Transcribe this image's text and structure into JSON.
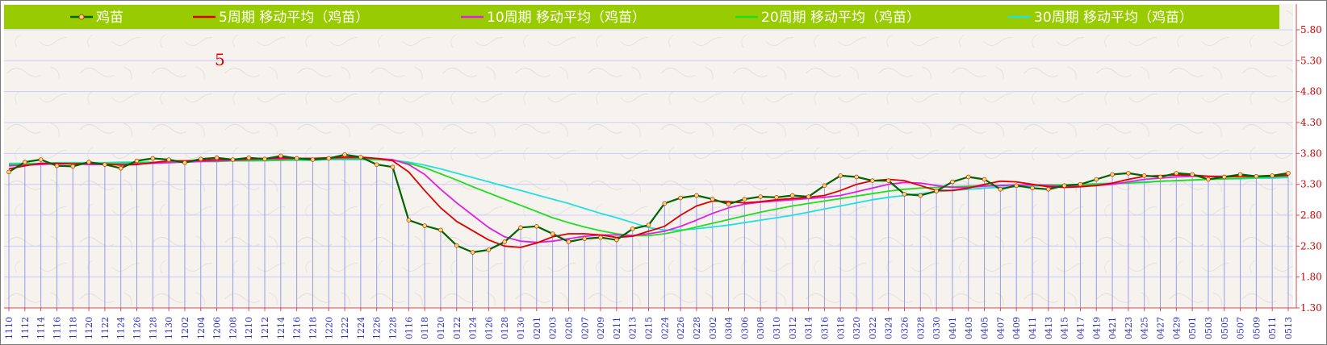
{
  "chart_data": {
    "type": "line",
    "title": "",
    "xlabel": "",
    "ylabel": "",
    "ylim": [
      1.3,
      5.8
    ],
    "yticks": [
      1.3,
      1.8,
      2.3,
      2.8,
      3.3,
      3.8,
      4.3,
      4.8,
      5.3,
      5.8
    ],
    "ytick_labels": [
      "1.30",
      "1.80",
      "2.30",
      "2.80",
      "3.30",
      "3.80",
      "4.30",
      "4.80",
      "5.30",
      "5.80"
    ],
    "legend_position": "top",
    "grid": true,
    "annotation": "5",
    "x": [
      "1110",
      "1112",
      "1114",
      "1116",
      "1118",
      "1120",
      "1122",
      "1124",
      "1126",
      "1128",
      "1130",
      "1202",
      "1204",
      "1206",
      "1208",
      "1210",
      "1212",
      "1214",
      "1216",
      "1218",
      "1220",
      "1222",
      "1224",
      "1226",
      "1228",
      "0116",
      "0118",
      "0120",
      "0122",
      "0124",
      "0126",
      "0128",
      "0130",
      "0201",
      "0203",
      "0205",
      "0207",
      "0209",
      "0211",
      "0213",
      "0215",
      "0224",
      "0226",
      "0228",
      "0302",
      "0304",
      "0306",
      "0308",
      "0310",
      "0312",
      "0314",
      "0316",
      "0318",
      "0320",
      "0322",
      "0324",
      "0326",
      "0328",
      "0330",
      "0401",
      "0403",
      "0405",
      "0407",
      "0409",
      "0411",
      "0413",
      "0415",
      "0417",
      "0419",
      "0421",
      "0423",
      "0425",
      "0427",
      "0429",
      "0501",
      "0503",
      "0505",
      "0507",
      "0509",
      "0511",
      "0513"
    ],
    "series": [
      {
        "name": "鸡苗",
        "color": "#006400",
        "values": [
          3.5,
          3.66,
          3.7,
          3.6,
          3.59,
          3.66,
          3.62,
          3.56,
          3.68,
          3.72,
          3.7,
          3.65,
          3.71,
          3.73,
          3.7,
          3.73,
          3.71,
          3.76,
          3.72,
          3.7,
          3.72,
          3.78,
          3.74,
          3.62,
          3.58,
          2.72,
          2.63,
          2.56,
          2.31,
          2.2,
          2.24,
          2.37,
          2.6,
          2.62,
          2.5,
          2.37,
          2.42,
          2.44,
          2.4,
          2.58,
          2.64,
          2.99,
          3.08,
          3.12,
          3.06,
          2.98,
          3.06,
          3.1,
          3.09,
          3.12,
          3.1,
          3.28,
          3.44,
          3.42,
          3.36,
          3.36,
          3.14,
          3.12,
          3.19,
          3.34,
          3.42,
          3.38,
          3.22,
          3.28,
          3.24,
          3.22,
          3.28,
          3.3,
          3.38,
          3.46,
          3.48,
          3.44,
          3.42,
          3.48,
          3.46,
          3.38,
          3.42,
          3.46,
          3.43,
          3.44,
          3.48
        ]
      },
      {
        "name": "5周期 移动平均（鸡苗）",
        "color": "#dd0000",
        "values": [
          3.55,
          3.6,
          3.64,
          3.64,
          3.63,
          3.64,
          3.63,
          3.61,
          3.62,
          3.65,
          3.68,
          3.68,
          3.69,
          3.7,
          3.7,
          3.71,
          3.72,
          3.73,
          3.72,
          3.72,
          3.73,
          3.74,
          3.74,
          3.72,
          3.68,
          3.5,
          3.2,
          2.92,
          2.7,
          2.55,
          2.4,
          2.3,
          2.28,
          2.35,
          2.45,
          2.5,
          2.5,
          2.48,
          2.44,
          2.46,
          2.54,
          2.62,
          2.8,
          2.95,
          3.03,
          3.02,
          3.0,
          3.02,
          3.05,
          3.07,
          3.09,
          3.12,
          3.2,
          3.3,
          3.36,
          3.38,
          3.36,
          3.28,
          3.2,
          3.2,
          3.24,
          3.3,
          3.35,
          3.34,
          3.3,
          3.26,
          3.25,
          3.26,
          3.28,
          3.32,
          3.38,
          3.43,
          3.44,
          3.45,
          3.45,
          3.43,
          3.42,
          3.43,
          3.43,
          3.43,
          3.45
        ]
      },
      {
        "name": "10周期 移动平均（鸡苗）",
        "color": "#e020e0",
        "values": [
          3.6,
          3.61,
          3.62,
          3.63,
          3.63,
          3.62,
          3.62,
          3.62,
          3.63,
          3.64,
          3.65,
          3.66,
          3.67,
          3.68,
          3.69,
          3.7,
          3.71,
          3.71,
          3.72,
          3.72,
          3.72,
          3.73,
          3.73,
          3.72,
          3.7,
          3.62,
          3.46,
          3.22,
          3.0,
          2.8,
          2.6,
          2.45,
          2.38,
          2.36,
          2.38,
          2.42,
          2.46,
          2.48,
          2.48,
          2.47,
          2.5,
          2.54,
          2.62,
          2.72,
          2.83,
          2.92,
          2.98,
          3.01,
          3.03,
          3.05,
          3.07,
          3.09,
          3.12,
          3.18,
          3.24,
          3.3,
          3.33,
          3.32,
          3.28,
          3.25,
          3.25,
          3.27,
          3.28,
          3.29,
          3.29,
          3.28,
          3.27,
          3.27,
          3.28,
          3.3,
          3.34,
          3.38,
          3.4,
          3.42,
          3.43,
          3.43,
          3.43,
          3.43,
          3.43,
          3.44,
          3.44
        ]
      },
      {
        "name": "20周期 移动平均（鸡苗）",
        "color": "#22dd22",
        "values": [
          3.62,
          3.63,
          3.63,
          3.64,
          3.64,
          3.64,
          3.64,
          3.64,
          3.65,
          3.65,
          3.66,
          3.66,
          3.67,
          3.67,
          3.68,
          3.68,
          3.69,
          3.69,
          3.7,
          3.7,
          3.71,
          3.71,
          3.71,
          3.7,
          3.69,
          3.64,
          3.57,
          3.47,
          3.37,
          3.26,
          3.16,
          3.06,
          2.96,
          2.86,
          2.76,
          2.68,
          2.61,
          2.55,
          2.5,
          2.47,
          2.47,
          2.5,
          2.55,
          2.61,
          2.67,
          2.73,
          2.79,
          2.85,
          2.9,
          2.95,
          2.99,
          3.03,
          3.07,
          3.11,
          3.15,
          3.19,
          3.22,
          3.24,
          3.25,
          3.26,
          3.27,
          3.28,
          3.28,
          3.29,
          3.29,
          3.29,
          3.29,
          3.3,
          3.3,
          3.31,
          3.32,
          3.33,
          3.35,
          3.36,
          3.37,
          3.38,
          3.39,
          3.4,
          3.41,
          3.42,
          3.43
        ]
      },
      {
        "name": "30周期 移动平均（鸡苗）",
        "color": "#22e0e0",
        "values": [
          3.64,
          3.64,
          3.64,
          3.65,
          3.65,
          3.65,
          3.65,
          3.66,
          3.66,
          3.66,
          3.66,
          3.67,
          3.67,
          3.67,
          3.68,
          3.68,
          3.68,
          3.69,
          3.69,
          3.69,
          3.7,
          3.7,
          3.7,
          3.7,
          3.69,
          3.66,
          3.61,
          3.55,
          3.48,
          3.41,
          3.34,
          3.27,
          3.2,
          3.13,
          3.06,
          2.99,
          2.91,
          2.83,
          2.76,
          2.68,
          2.6,
          2.56,
          2.56,
          2.58,
          2.61,
          2.64,
          2.68,
          2.72,
          2.76,
          2.8,
          2.85,
          2.9,
          2.95,
          3.0,
          3.05,
          3.09,
          3.12,
          3.15,
          3.18,
          3.2,
          3.22,
          3.24,
          3.25,
          3.26,
          3.27,
          3.28,
          3.29,
          3.3,
          3.31,
          3.32,
          3.33,
          3.34,
          3.35,
          3.36,
          3.37,
          3.38,
          3.39,
          3.39,
          3.4,
          3.4,
          3.41
        ]
      }
    ]
  },
  "colors": {
    "legend_bg": "#99cc00",
    "plot_bg": "#f6f3ee",
    "grid_line": "#ccccff",
    "drop_line": "#9999ee",
    "tick_text_y": "#cc0000",
    "tick_text_x": "#2a2ad0",
    "marker_fill": "#f0e070"
  }
}
